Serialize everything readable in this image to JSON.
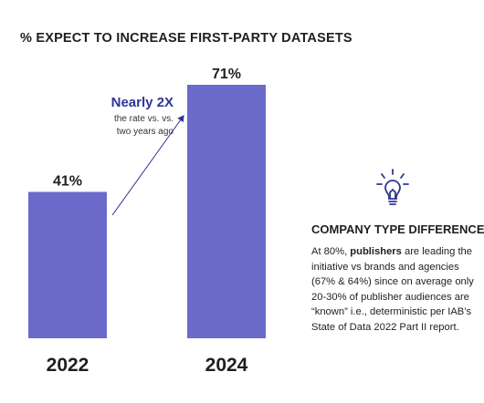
{
  "chart_data": {
    "type": "bar",
    "title": "% EXPECT TO INCREASE FIRST-PARTY DATASETS",
    "categories": [
      "2022",
      "2024"
    ],
    "values": [
      41,
      71
    ],
    "value_labels": [
      "41%",
      "71%"
    ],
    "ylim": [
      0,
      100
    ],
    "grid": false,
    "bar_color": "#6b6acb",
    "annotation": {
      "headline": "Nearly 2X",
      "subtext_line1": "the rate vs. vs.",
      "subtext_line2": "two years ago",
      "color": "#2f3596"
    }
  },
  "sidebar": {
    "icon": "lightbulb-icon",
    "heading": "COMPANY TYPE DIFFERENCES",
    "body_prefix": "At 80%, ",
    "body_bold": "publishers",
    "body_rest": " are leading the initiative vs brands and agencies (67% & 64%) since on average only 20-30% of publisher audiences are “known” i.e., deterministic per IAB’s State of Data 2022 Part II report."
  }
}
